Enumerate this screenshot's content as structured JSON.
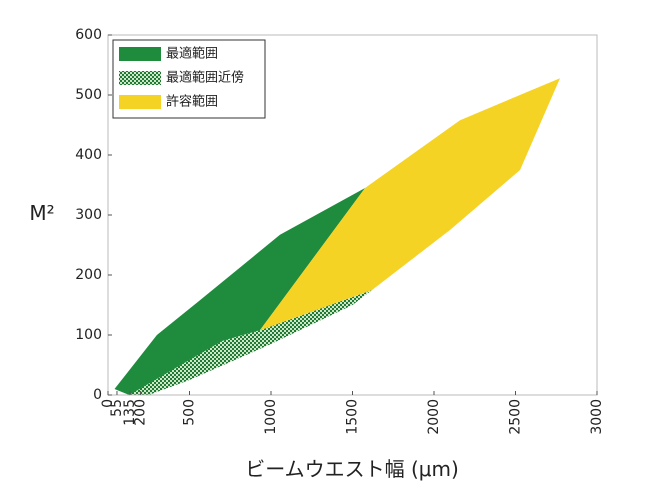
{
  "chart_data": {
    "type": "area",
    "xlabel": "ビームウエスト幅 (μm)",
    "ylabel": "M²",
    "xlim": [
      0,
      3000
    ],
    "ylim": [
      0,
      600
    ],
    "xticks": [
      0,
      55,
      135,
      200,
      500,
      1000,
      1500,
      2000,
      2500,
      3000
    ],
    "yticks": [
      0,
      100,
      200,
      300,
      400,
      500,
      600
    ],
    "legend": "upper left",
    "series": [
      {
        "name": "最適範囲",
        "color": "#1f8b3d",
        "x": [
          40,
          300,
          564,
          1055,
          1577,
          932,
          700,
          300,
          130
        ],
        "values": [
          10,
          100,
          158,
          267,
          345,
          108,
          90,
          20,
          0
        ]
      },
      {
        "name": "最適範囲近傍",
        "color": "#2f9448",
        "pattern": "checkered",
        "x": [
          130,
          700,
          932,
          1620,
          1500,
          1000,
          500,
          250
        ],
        "values": [
          0,
          90,
          108,
          175,
          150,
          85,
          25,
          0
        ]
      },
      {
        "name": "許容範囲",
        "color": "#f5d324",
        "x": [
          932,
          1577,
          2160,
          2773,
          2528,
          2098,
          1620
        ],
        "values": [
          108,
          345,
          458,
          528,
          375,
          275,
          175
        ]
      }
    ]
  }
}
